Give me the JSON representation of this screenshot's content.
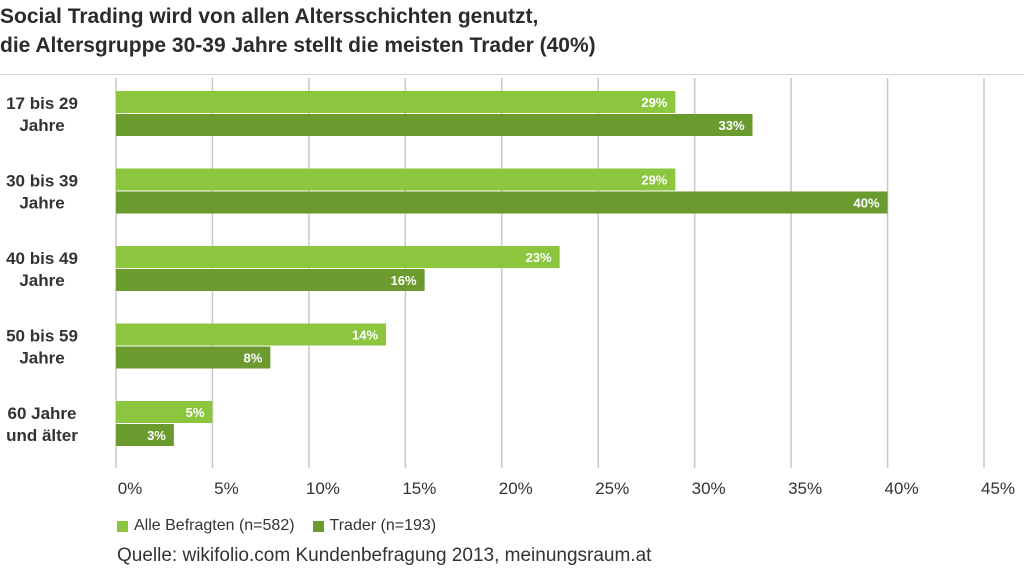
{
  "header": {
    "title_line1": "Social Trading wird von allen Altersschichten genutzt,",
    "title_line2": "die Altersgruppe 30-39 Jahre stellt die meisten Trader (40%)"
  },
  "colors": {
    "series_1": "#8cc63f",
    "series_2": "#6b9a2f",
    "grid": "#c8c8c8"
  },
  "chart_data": {
    "type": "bar",
    "orientation": "horizontal",
    "categories": [
      [
        "17 bis 29",
        "Jahre"
      ],
      [
        "30 bis 39",
        "Jahre"
      ],
      [
        "40 bis 49",
        "Jahre"
      ],
      [
        "50 bis 59",
        "Jahre"
      ],
      [
        "60 Jahre",
        "und älter"
      ]
    ],
    "series": [
      {
        "name": "Alle Befragten (n=582)",
        "values": [
          29,
          29,
          23,
          14,
          5
        ],
        "labels": [
          "29%",
          "29%",
          "23%",
          "14%",
          "5%"
        ]
      },
      {
        "name": "Trader (n=193)",
        "values": [
          33,
          40,
          16,
          8,
          3
        ],
        "labels": [
          "33%",
          "40%",
          "16%",
          "8%",
          "3%"
        ]
      }
    ],
    "xlim": [
      0,
      45
    ],
    "x_ticks": [
      0,
      5,
      10,
      15,
      20,
      25,
      30,
      35,
      40,
      45
    ],
    "x_tick_labels": [
      "0%",
      "5%",
      "10%",
      "15%",
      "20%",
      "25%",
      "30%",
      "35%",
      "40%",
      "45%"
    ],
    "grid": true,
    "legend_position": "bottom-left"
  },
  "legend": {
    "item1": "Alle Befragten (n=582)",
    "item2": "Trader (n=193)"
  },
  "footer": {
    "source": "Quelle: wikifolio.com Kundenbefragung 2013, meinungsraum.at"
  }
}
